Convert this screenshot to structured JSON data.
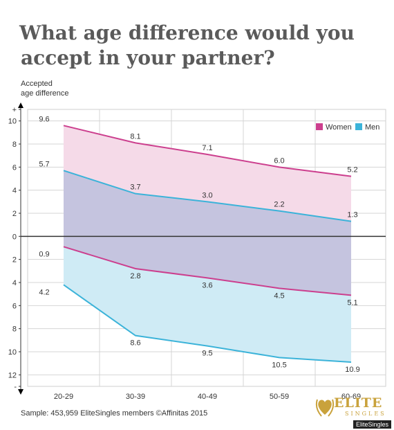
{
  "title_line1": "What age difference would you",
  "title_line2": "accept in your partner?",
  "y_axis_label_line1": "Accepted",
  "y_axis_label_line2": "age difference",
  "footer": "Sample: 453,959 EliteSingles members  ©Affinitas 2015",
  "logo": {
    "wordmark": "ELITE",
    "sub": "SINGLES",
    "icon": "heart-laurel-icon"
  },
  "credit": "EliteSingles",
  "colors": {
    "women": "#cc3f8e",
    "men": "#3bb3d9",
    "women_fill": "#f5dae8",
    "men_fill": "#cfebf5",
    "overlap_fill": "#c5c4df"
  },
  "chart_data": {
    "type": "area",
    "categories": [
      "20-29",
      "30-39",
      "40-49",
      "50-59",
      "60-69"
    ],
    "y_top_ticks": [
      "+",
      "10",
      "8",
      "6",
      "4",
      "2",
      "0"
    ],
    "y_bottom_ticks": [
      "2",
      "4",
      "6",
      "8",
      "10",
      "12",
      "-"
    ],
    "ylim": [
      -12,
      10
    ],
    "grid": true,
    "legend_position": "top-right",
    "series": [
      {
        "name": "Women",
        "key": "women",
        "band": "upper",
        "values": [
          9.6,
          8.1,
          7.1,
          6.0,
          5.2
        ],
        "labels": [
          "9.6",
          "8.1",
          "7.1",
          "6.0",
          "5.2"
        ]
      },
      {
        "name": "Men",
        "key": "men",
        "band": "upper",
        "values": [
          5.7,
          3.7,
          3.0,
          2.2,
          1.3
        ],
        "labels": [
          "5.7",
          "3.7",
          "3.0",
          "2.2",
          "1.3"
        ]
      },
      {
        "name": "Women",
        "key": "women",
        "band": "lower",
        "values": [
          -0.9,
          -2.8,
          -3.6,
          -4.5,
          -5.1
        ],
        "labels": [
          "0.9",
          "2.8",
          "3.6",
          "4.5",
          "5.1"
        ]
      },
      {
        "name": "Men",
        "key": "men",
        "band": "lower",
        "values": [
          -4.2,
          -8.6,
          -9.5,
          -10.5,
          -10.9
        ],
        "labels": [
          "4.2",
          "8.6",
          "9.5",
          "10.5",
          "10.9"
        ]
      }
    ]
  }
}
